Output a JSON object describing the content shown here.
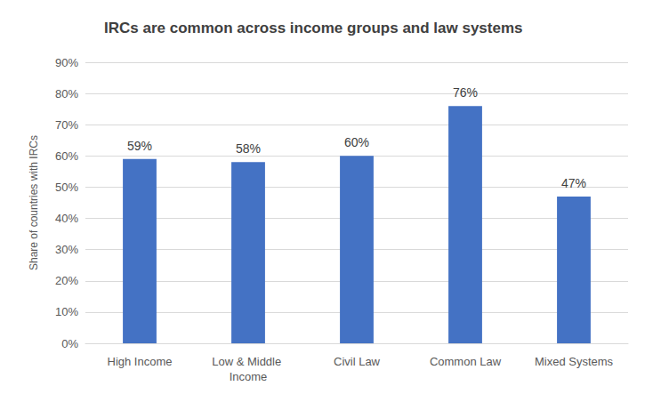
{
  "chart_data": {
    "type": "bar",
    "title": "IRCs are common across income groups and law systems",
    "y_label": "Share of countries with IRCs",
    "categories": [
      "High Income",
      "Low & Middle Income",
      "Civil Law",
      "Common Law",
      "Mixed Systems"
    ],
    "values": [
      59,
      58,
      60,
      76,
      47
    ],
    "value_labels": [
      "59%",
      "58%",
      "60%",
      "76%",
      "47%"
    ],
    "data_labels": true,
    "color": "#4472c4",
    "ylim": [
      0,
      90
    ],
    "yticks": [
      {
        "value": 0,
        "label": "0%"
      },
      {
        "value": 10,
        "label": "10%"
      },
      {
        "value": 20,
        "label": "20%"
      },
      {
        "value": 30,
        "label": "30%"
      },
      {
        "value": 40,
        "label": "40%"
      },
      {
        "value": 50,
        "label": "50%"
      },
      {
        "value": 60,
        "label": "60%"
      },
      {
        "value": 70,
        "label": "70%"
      },
      {
        "value": 80,
        "label": "80%"
      },
      {
        "value": 90,
        "label": "90%"
      }
    ],
    "grid": true
  }
}
